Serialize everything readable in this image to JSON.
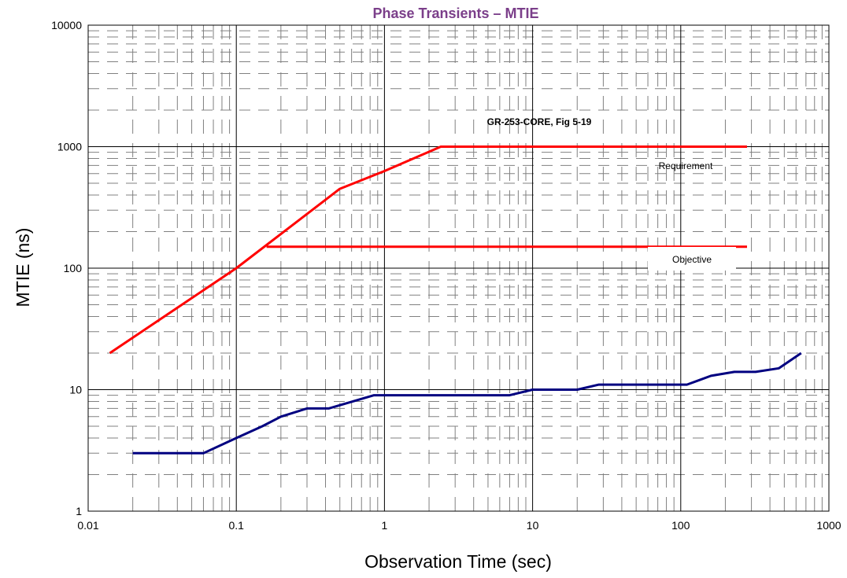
{
  "chart_data": {
    "type": "line",
    "title": "Phase Transients – MTIE",
    "xlabel": "Observation Time (sec)",
    "ylabel": "MTIE (ns)",
    "x_scale": "log",
    "y_scale": "log",
    "xlim": [
      0.01,
      1000
    ],
    "ylim": [
      1,
      10000
    ],
    "x_ticks": [
      "0.01",
      "0.1",
      "1",
      "10",
      "100",
      "1000"
    ],
    "y_ticks": [
      "1",
      "10",
      "100",
      "1000",
      "10000"
    ],
    "grid": true,
    "annotations": {
      "source": "GR-253-CORE, Fig 5-19",
      "requirement": "Requirement",
      "objective": "Objective"
    },
    "series": [
      {
        "key": "requirement",
        "color": "#ff0000",
        "points": [
          [
            0.014,
            20
          ],
          [
            0.1,
            100
          ],
          [
            0.5,
            450
          ],
          [
            1,
            630
          ],
          [
            2.4,
            1000
          ],
          [
            280,
            1000
          ]
        ]
      },
      {
        "key": "objective",
        "color": "#ff0000",
        "points": [
          [
            0.16,
            150
          ],
          [
            280,
            150
          ]
        ]
      },
      {
        "key": "measured",
        "color": "#000080",
        "points": [
          [
            0.02,
            3
          ],
          [
            0.06,
            3
          ],
          [
            0.1,
            4
          ],
          [
            0.15,
            5
          ],
          [
            0.2,
            6
          ],
          [
            0.3,
            7
          ],
          [
            0.42,
            7
          ],
          [
            0.85,
            9
          ],
          [
            7,
            9
          ],
          [
            10,
            10
          ],
          [
            20,
            10
          ],
          [
            28,
            11
          ],
          [
            110,
            11
          ],
          [
            160,
            13
          ],
          [
            230,
            14
          ],
          [
            320,
            14
          ],
          [
            460,
            15
          ],
          [
            650,
            20
          ]
        ]
      }
    ],
    "colors": {
      "title": "#7b3f8a",
      "axis": "#000000",
      "grid_major": "#000000",
      "grid_minor": "#808080"
    }
  }
}
